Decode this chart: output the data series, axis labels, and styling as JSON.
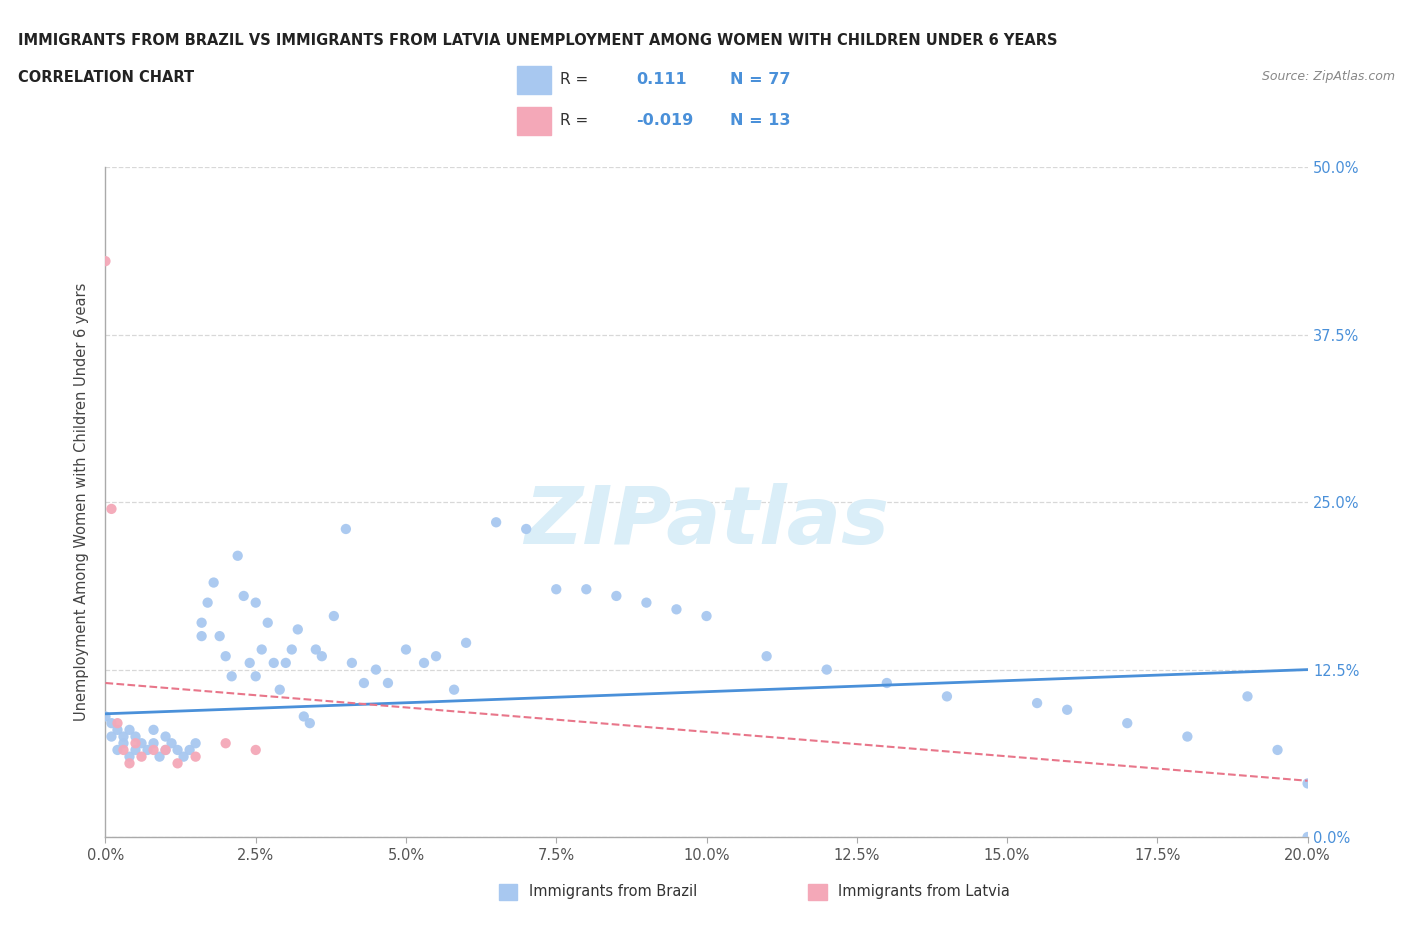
{
  "title_line1": "IMMIGRANTS FROM BRAZIL VS IMMIGRANTS FROM LATVIA UNEMPLOYMENT AMONG WOMEN WITH CHILDREN UNDER 6 YEARS",
  "title_line2": "CORRELATION CHART",
  "source": "Source: ZipAtlas.com",
  "xlabel_ticks": [
    "0.0%",
    "2.5%",
    "5.0%",
    "7.5%",
    "10.0%",
    "12.5%",
    "15.0%",
    "17.5%",
    "20.0%"
  ],
  "ylabel_ticks": [
    "0.0%",
    "12.5%",
    "25.0%",
    "37.5%",
    "50.0%"
  ],
  "ylabel_label": "Unemployment Among Women with Children Under 6 years",
  "xlim": [
    0.0,
    0.2
  ],
  "ylim": [
    0.0,
    0.5
  ],
  "brazil_R": 0.111,
  "brazil_N": 77,
  "latvia_R": -0.019,
  "latvia_N": 13,
  "brazil_color": "#a8c8f0",
  "brazil_line_color": "#4a90d9",
  "latvia_color": "#f4a8b8",
  "latvia_line_color": "#e8768a",
  "watermark_color": "#daeef8",
  "grid_color": "#d8d8d8",
  "brazil_x": [
    0.0,
    0.001,
    0.001,
    0.002,
    0.002,
    0.003,
    0.003,
    0.004,
    0.004,
    0.005,
    0.005,
    0.006,
    0.007,
    0.008,
    0.008,
    0.009,
    0.01,
    0.01,
    0.011,
    0.012,
    0.013,
    0.014,
    0.015,
    0.016,
    0.016,
    0.017,
    0.018,
    0.019,
    0.02,
    0.021,
    0.022,
    0.023,
    0.024,
    0.025,
    0.025,
    0.026,
    0.027,
    0.028,
    0.029,
    0.03,
    0.031,
    0.032,
    0.033,
    0.034,
    0.035,
    0.036,
    0.038,
    0.04,
    0.041,
    0.043,
    0.045,
    0.047,
    0.05,
    0.053,
    0.055,
    0.058,
    0.06,
    0.065,
    0.07,
    0.075,
    0.08,
    0.085,
    0.09,
    0.095,
    0.1,
    0.11,
    0.12,
    0.13,
    0.14,
    0.155,
    0.16,
    0.17,
    0.18,
    0.19,
    0.195,
    0.2,
    0.2
  ],
  "brazil_y": [
    0.09,
    0.075,
    0.085,
    0.065,
    0.08,
    0.07,
    0.075,
    0.06,
    0.08,
    0.065,
    0.075,
    0.07,
    0.065,
    0.07,
    0.08,
    0.06,
    0.065,
    0.075,
    0.07,
    0.065,
    0.06,
    0.065,
    0.07,
    0.15,
    0.16,
    0.175,
    0.19,
    0.15,
    0.135,
    0.12,
    0.21,
    0.18,
    0.13,
    0.12,
    0.175,
    0.14,
    0.16,
    0.13,
    0.11,
    0.13,
    0.14,
    0.155,
    0.09,
    0.085,
    0.14,
    0.135,
    0.165,
    0.23,
    0.13,
    0.115,
    0.125,
    0.115,
    0.14,
    0.13,
    0.135,
    0.11,
    0.145,
    0.235,
    0.23,
    0.185,
    0.185,
    0.18,
    0.175,
    0.17,
    0.165,
    0.135,
    0.125,
    0.115,
    0.105,
    0.1,
    0.095,
    0.085,
    0.075,
    0.105,
    0.065,
    0.04,
    0.0
  ],
  "latvia_x": [
    0.0,
    0.001,
    0.002,
    0.003,
    0.004,
    0.005,
    0.006,
    0.008,
    0.01,
    0.012,
    0.015,
    0.02,
    0.025
  ],
  "latvia_y": [
    0.43,
    0.245,
    0.085,
    0.065,
    0.055,
    0.07,
    0.06,
    0.065,
    0.065,
    0.055,
    0.06,
    0.07,
    0.065
  ]
}
